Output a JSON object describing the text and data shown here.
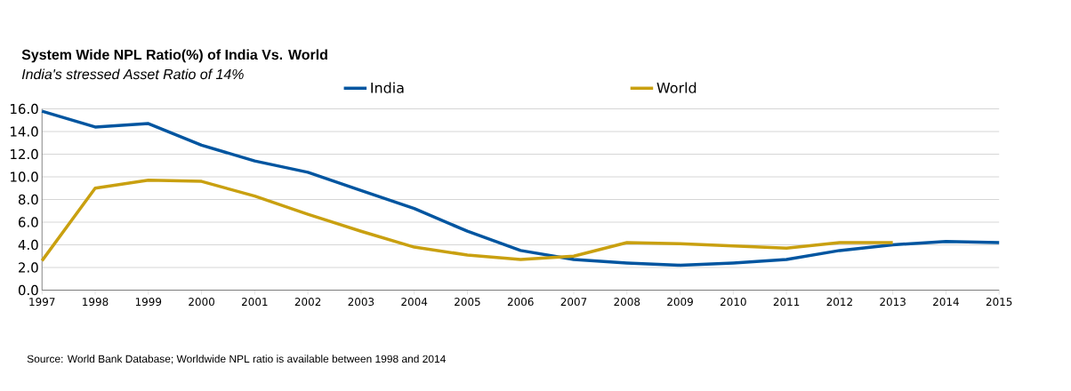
{
  "chart_data": {
    "type": "line",
    "title": "System Wide NPL Ratio(%) of India Vs. World",
    "subtitle": "India's stressed Asset Ratio of 14%",
    "categories": [
      "1997",
      "1998",
      "1999",
      "2000",
      "2001",
      "2002",
      "2003",
      "2004",
      "2005",
      "2006",
      "2007",
      "2008",
      "2009",
      "2010",
      "2011",
      "2012",
      "2013",
      "2014",
      "2015"
    ],
    "series": [
      {
        "name": "India",
        "color": "#0055a0",
        "values": [
          15.8,
          14.4,
          14.7,
          12.8,
          11.4,
          10.4,
          8.8,
          7.2,
          5.2,
          3.5,
          2.7,
          2.4,
          2.2,
          2.4,
          2.7,
          3.5,
          4.0,
          4.3,
          4.2
        ]
      },
      {
        "name": "World",
        "color": "#c9a010",
        "values": [
          2.6,
          9.0,
          9.7,
          9.6,
          8.3,
          6.7,
          5.2,
          3.8,
          3.1,
          2.7,
          3.0,
          4.2,
          4.1,
          3.9,
          3.7,
          4.2,
          4.2,
          null,
          null
        ]
      }
    ],
    "ylim": [
      0,
      16
    ],
    "yticks": [
      {
        "value": 0,
        "label": "0.0"
      },
      {
        "value": 2,
        "label": "2.0"
      },
      {
        "value": 4,
        "label": "4.0"
      },
      {
        "value": 6,
        "label": "6.0"
      },
      {
        "value": 8,
        "label": "8.0"
      },
      {
        "value": 10,
        "label": "10.0"
      },
      {
        "value": 12,
        "label": "12.0"
      },
      {
        "value": 14,
        "label": "14.0"
      },
      {
        "value": 16,
        "label": "16.0"
      }
    ],
    "grid": "y",
    "legend": "top",
    "marker": "none",
    "line_style": "solid",
    "annotations": [
      "Source: World Bank Database; Worldwide NPL ratio is available between 1998 and 2014"
    ]
  }
}
